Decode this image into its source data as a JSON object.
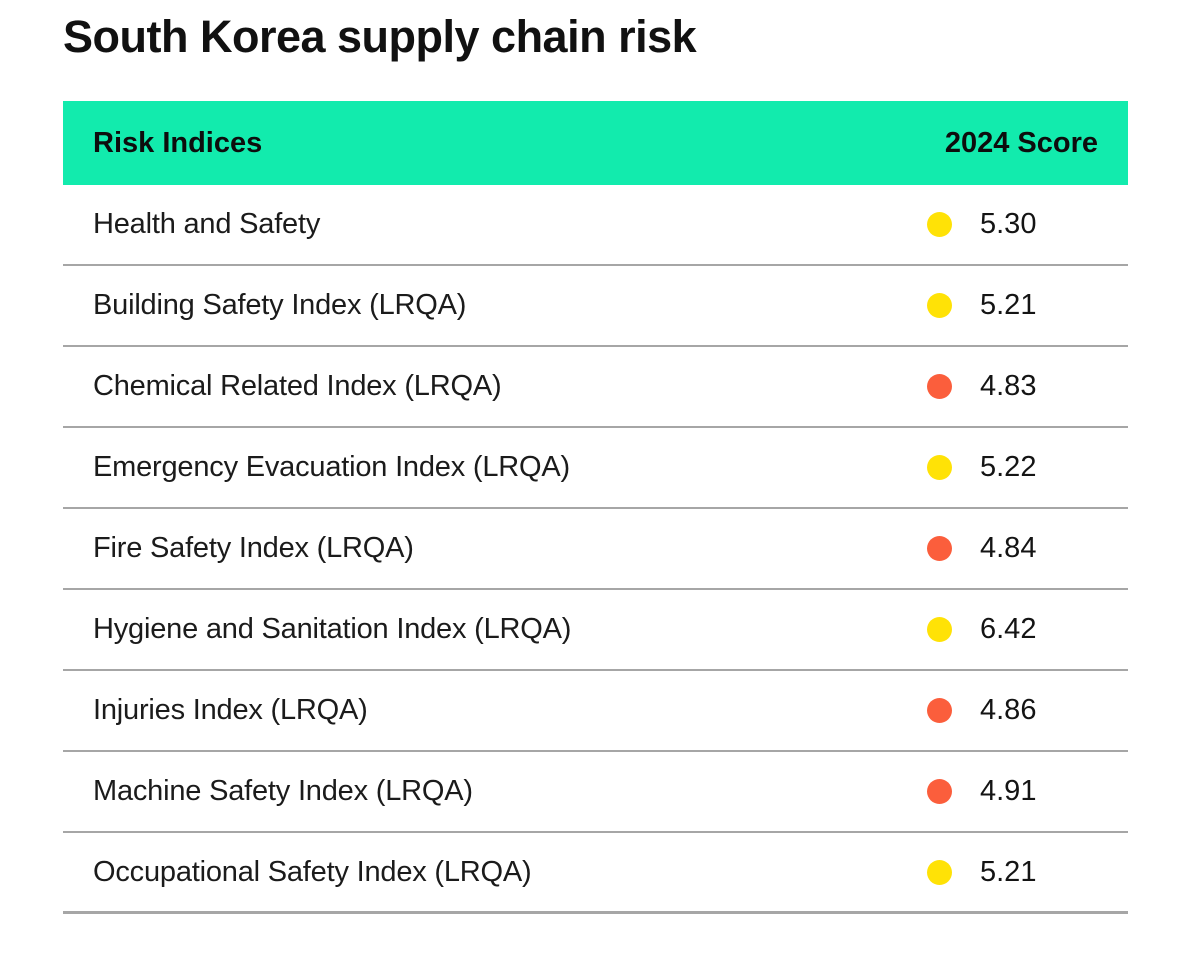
{
  "page": {
    "title": "South Korea supply chain risk"
  },
  "colors": {
    "header_bg": "#12EBAD",
    "dot_yellow": "#FFE206",
    "dot_orange": "#FB5E3C",
    "divider": "#A6A6A6",
    "text": "#1B1B1B"
  },
  "table": {
    "columns": [
      "Risk Indices",
      "2024 Score"
    ],
    "rows": [
      {
        "label": "Health and Safety",
        "score": "5.30",
        "color": "yellow"
      },
      {
        "label": "Building Safety Index (LRQA)",
        "score": "5.21",
        "color": "yellow"
      },
      {
        "label": "Chemical Related Index (LRQA)",
        "score": "4.83",
        "color": "orange"
      },
      {
        "label": "Emergency Evacuation Index (LRQA)",
        "score": "5.22",
        "color": "yellow"
      },
      {
        "label": "Fire Safety Index (LRQA)",
        "score": "4.84",
        "color": "orange"
      },
      {
        "label": "Hygiene and Sanitation Index (LRQA)",
        "score": "6.42",
        "color": "yellow"
      },
      {
        "label": "Injuries Index (LRQA)",
        "score": "4.86",
        "color": "orange"
      },
      {
        "label": "Machine Safety Index (LRQA)",
        "score": "4.91",
        "color": "orange"
      },
      {
        "label": "Occupational Safety Index (LRQA)",
        "score": "5.21",
        "color": "yellow"
      }
    ]
  },
  "chart_data": {
    "type": "table",
    "title": "South Korea supply chain risk",
    "columns": [
      "Risk Indices",
      "2024 Score"
    ],
    "categories": [
      "Health and Safety",
      "Building Safety Index (LRQA)",
      "Chemical Related Index (LRQA)",
      "Emergency Evacuation Index (LRQA)",
      "Fire Safety Index (LRQA)",
      "Hygiene and Sanitation Index (LRQA)",
      "Injuries Index (LRQA)",
      "Machine Safety Index (LRQA)",
      "Occupational Safety Index (LRQA)"
    ],
    "values": [
      5.3,
      5.21,
      4.83,
      5.22,
      4.84,
      6.42,
      4.86,
      4.91,
      5.21
    ],
    "status_colors": [
      "yellow",
      "yellow",
      "orange",
      "yellow",
      "orange",
      "yellow",
      "orange",
      "orange",
      "yellow"
    ]
  }
}
